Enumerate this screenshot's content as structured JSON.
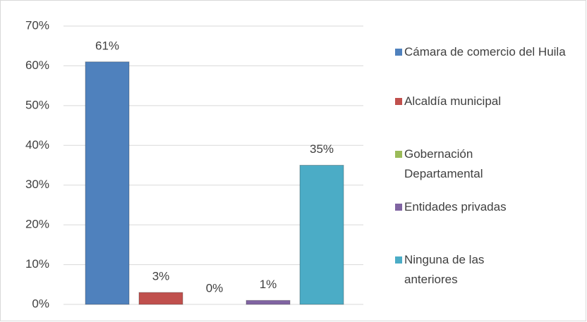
{
  "chart_data": {
    "type": "bar",
    "series": [
      {
        "name": "Cámara de comercio del Huila",
        "color": "#4f81bd",
        "values": [
          61
        ],
        "value_labels": [
          "61%"
        ]
      },
      {
        "name": "Alcaldía municipal",
        "color": "#c0504d",
        "values": [
          3
        ],
        "value_labels": [
          "3%"
        ]
      },
      {
        "name": "Gobernación Departamental",
        "color": "#9bbb59",
        "values": [
          0
        ],
        "value_labels": [
          "0%"
        ]
      },
      {
        "name": "Entidades privadas",
        "color": "#8064a2",
        "values": [
          1
        ],
        "value_labels": [
          "1%"
        ]
      },
      {
        "name": "Ninguna de las anteriores",
        "color": "#4bacc6",
        "values": [
          35
        ],
        "value_labels": [
          "35%"
        ]
      }
    ],
    "ylim": [
      0,
      70
    ],
    "yticks": [
      {
        "value": 0,
        "label": "0%"
      },
      {
        "value": 10,
        "label": "10%"
      },
      {
        "value": 20,
        "label": "20%"
      },
      {
        "value": 30,
        "label": "30%"
      },
      {
        "value": 40,
        "label": "40%"
      },
      {
        "value": 50,
        "label": "50%"
      },
      {
        "value": 60,
        "label": "60%"
      },
      {
        "value": 70,
        "label": "70%"
      }
    ],
    "grid": true,
    "legend": "right"
  }
}
